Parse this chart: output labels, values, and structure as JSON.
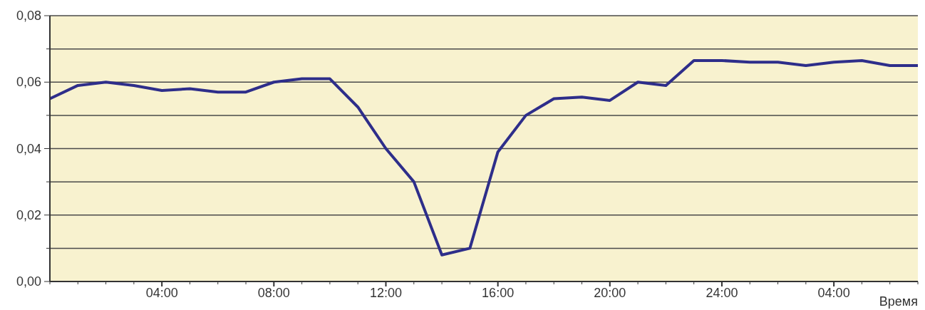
{
  "chart_data": {
    "type": "line",
    "xlabel": "Время",
    "categories": [
      null,
      null,
      null,
      null,
      "04:00",
      null,
      null,
      null,
      "08:00",
      null,
      null,
      null,
      "12:00",
      null,
      null,
      null,
      "16:00",
      null,
      null,
      null,
      "20:00",
      null,
      null,
      null,
      "24:00",
      null,
      null,
      null,
      "04:00",
      null,
      null,
      null
    ],
    "series": [
      {
        "color": "#2e2e8a",
        "values": [
          0.055,
          0.059,
          0.06,
          0.059,
          0.0575,
          0.058,
          0.057,
          0.057,
          0.06,
          0.061,
          0.061,
          0.0525,
          0.04,
          0.03,
          0.008,
          0.01,
          0.039,
          0.05,
          0.055,
          0.0555,
          0.0545,
          0.06,
          0.059,
          0.0665,
          0.0665,
          0.066,
          0.066,
          0.065,
          0.066,
          0.0665,
          0.065,
          0.065
        ]
      }
    ],
    "ylim": [
      0,
      0.08
    ],
    "yticks": [
      {
        "value": 0,
        "label": "0,00"
      },
      {
        "value": 0.01,
        "label": null
      },
      {
        "value": 0.02,
        "label": "0,02"
      },
      {
        "value": 0.03,
        "label": null
      },
      {
        "value": 0.04,
        "label": "0,04"
      },
      {
        "value": 0.05,
        "label": null
      },
      {
        "value": 0.06,
        "label": "0,06"
      },
      {
        "value": 0.07,
        "label": null
      },
      {
        "value": 0.08,
        "label": "0,08"
      }
    ],
    "grid": "y",
    "marker": "none",
    "line_style": "solid"
  }
}
